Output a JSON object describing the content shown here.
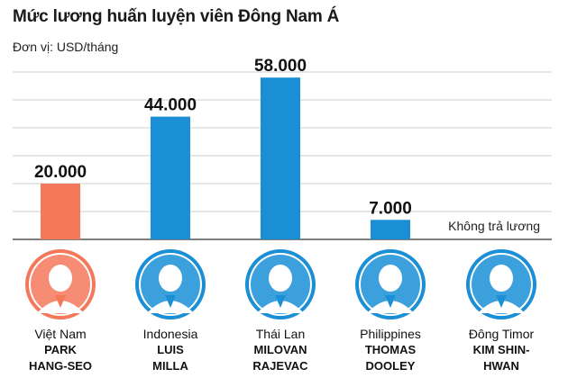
{
  "header": {
    "title": "Mức lương huấn luyện viên Đông Nam Á",
    "unit": "Đơn vị: USD/tháng"
  },
  "chart_data": {
    "type": "bar",
    "title": "Mức lương huấn luyện viên Đông Nam Á",
    "ylabel": "Đơn vị: USD/tháng",
    "categories": [
      "Việt Nam",
      "Indonesia",
      "Thái Lan",
      "Philippines",
      "Đông Timor"
    ],
    "values": [
      20000,
      44000,
      58000,
      7000,
      null
    ],
    "value_labels": [
      "20.000",
      "44.000",
      "58.000",
      "7.000",
      ""
    ],
    "bar_colors": [
      "#f4785a",
      "#1a8fd6",
      "#1a8fd6",
      "#1a8fd6",
      "#1a8fd6"
    ],
    "annotations": [
      "",
      "",
      "",
      "",
      "Không trả lương"
    ],
    "grid": true,
    "ylim": [
      0,
      60000
    ]
  },
  "coaches": [
    {
      "country": "Việt Nam",
      "name_line1": "PARK",
      "name_line2": "HANG-SEO",
      "ring_color": "#f4785a",
      "avatar_icon": "coach-portrait-icon"
    },
    {
      "country": "Indonesia",
      "name_line1": "LUIS",
      "name_line2": "MILLA",
      "ring_color": "#1a8fd6",
      "avatar_icon": "coach-portrait-icon"
    },
    {
      "country": "Thái Lan",
      "name_line1": "MILOVAN",
      "name_line2": "RAJEVAC",
      "ring_color": "#1a8fd6",
      "avatar_icon": "coach-portrait-icon"
    },
    {
      "country": "Philippines",
      "name_line1": "THOMAS",
      "name_line2": "DOOLEY",
      "ring_color": "#1a8fd6",
      "avatar_icon": "coach-portrait-icon"
    },
    {
      "country": "Đông Timor",
      "name_line1": "KIM SHIN-",
      "name_line2": "HWAN",
      "ring_color": "#1a8fd6",
      "avatar_icon": "coach-portrait-icon"
    }
  ]
}
